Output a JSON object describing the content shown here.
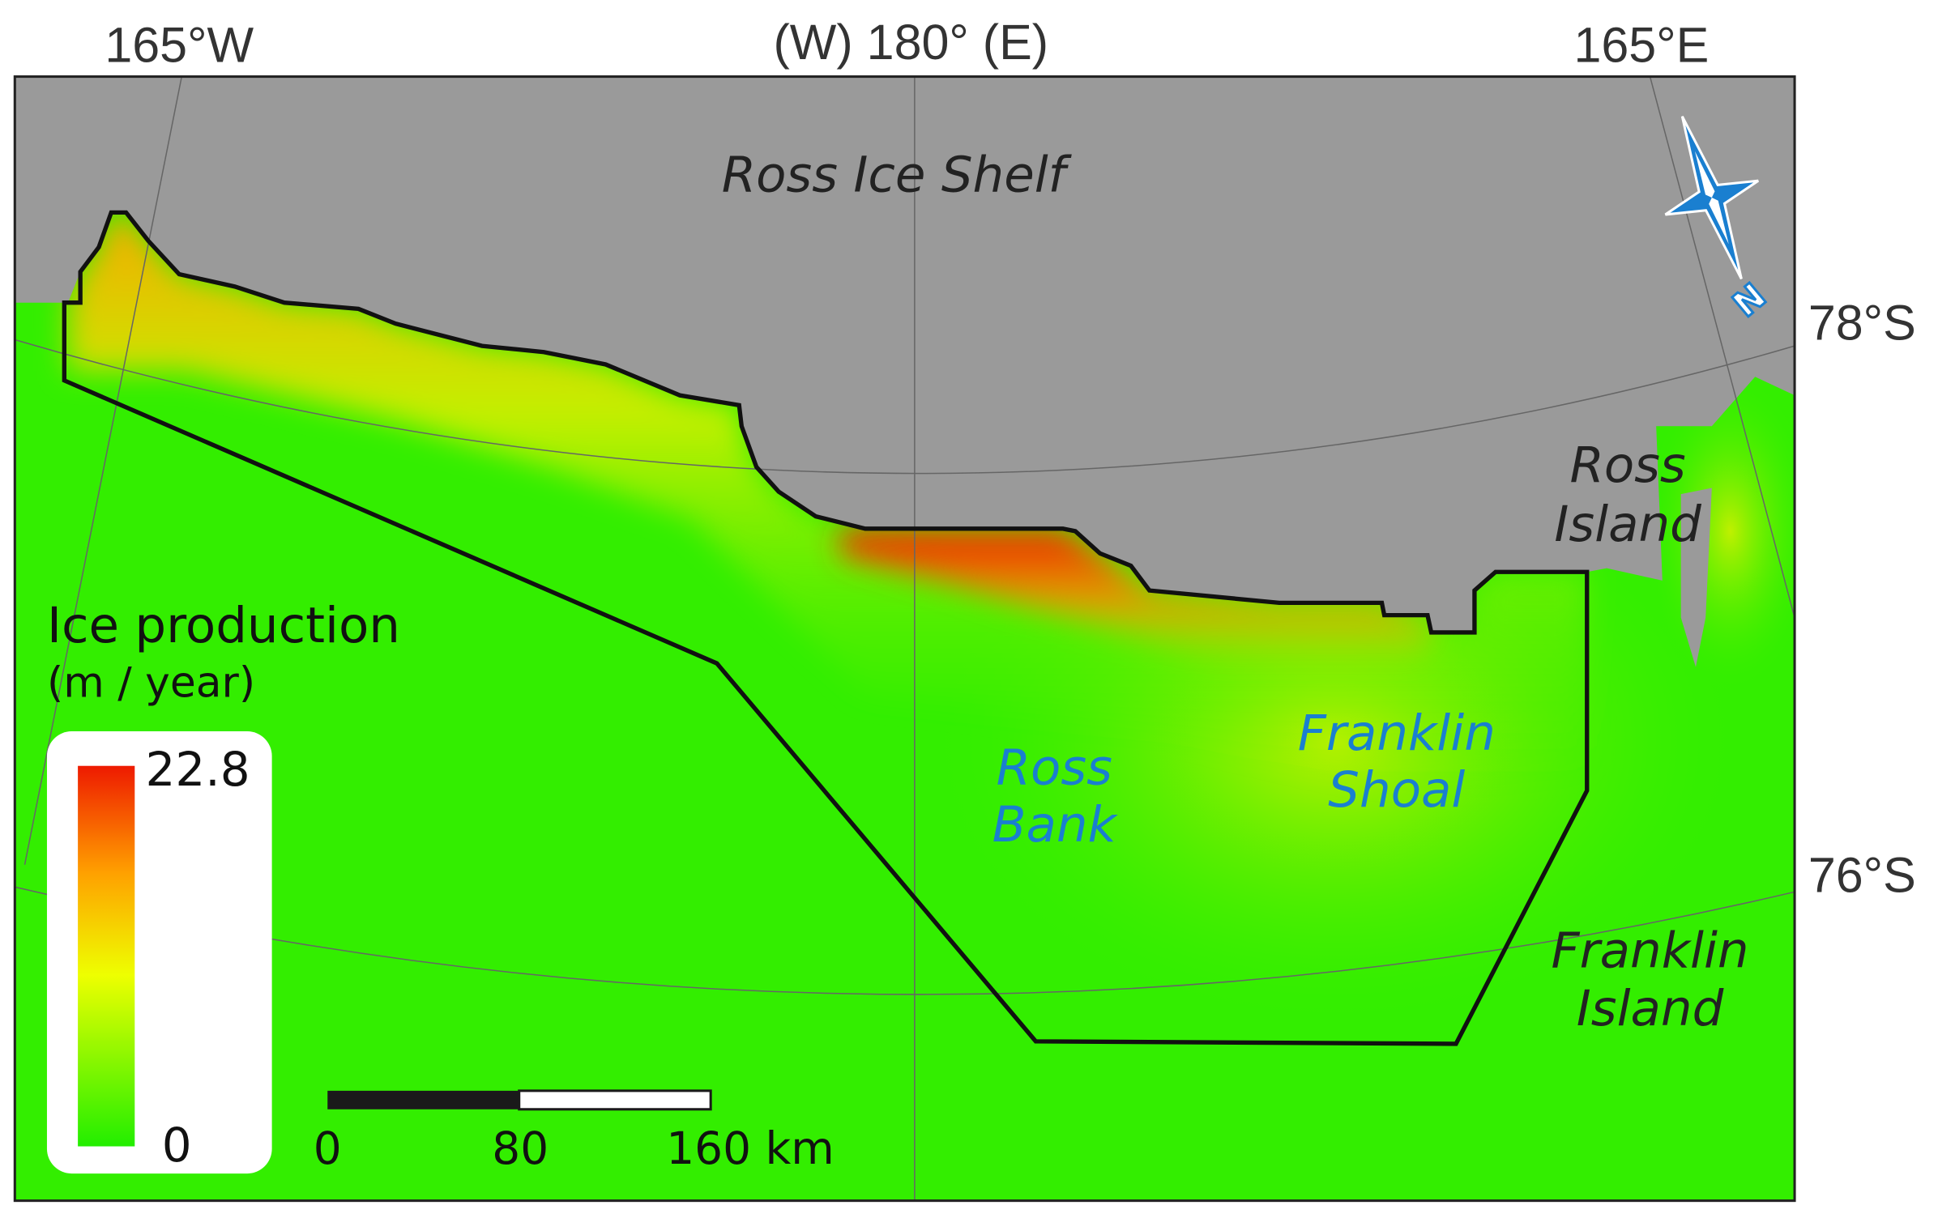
{
  "graticule": {
    "top": [
      "165°W",
      "(W) 180° (E)",
      "165°E"
    ],
    "right": [
      "78°S",
      "76°S"
    ]
  },
  "places": [
    {
      "lines": [
        "Ross Ice Shelf"
      ]
    },
    {
      "lines": [
        "Ross",
        "Island"
      ]
    },
    {
      "lines": [
        "Ross",
        "Bank"
      ]
    },
    {
      "lines": [
        "Franklin",
        "Shoal"
      ]
    },
    {
      "lines": [
        "Franklin",
        "Island"
      ]
    }
  ],
  "legend": {
    "title": "Ice production",
    "unit": "(m / year)",
    "max": 22.8,
    "min": 0
  },
  "scale_bar": {
    "labels": [
      "0",
      "80",
      "160 km"
    ]
  },
  "north_arrow": {
    "label": "N"
  }
}
